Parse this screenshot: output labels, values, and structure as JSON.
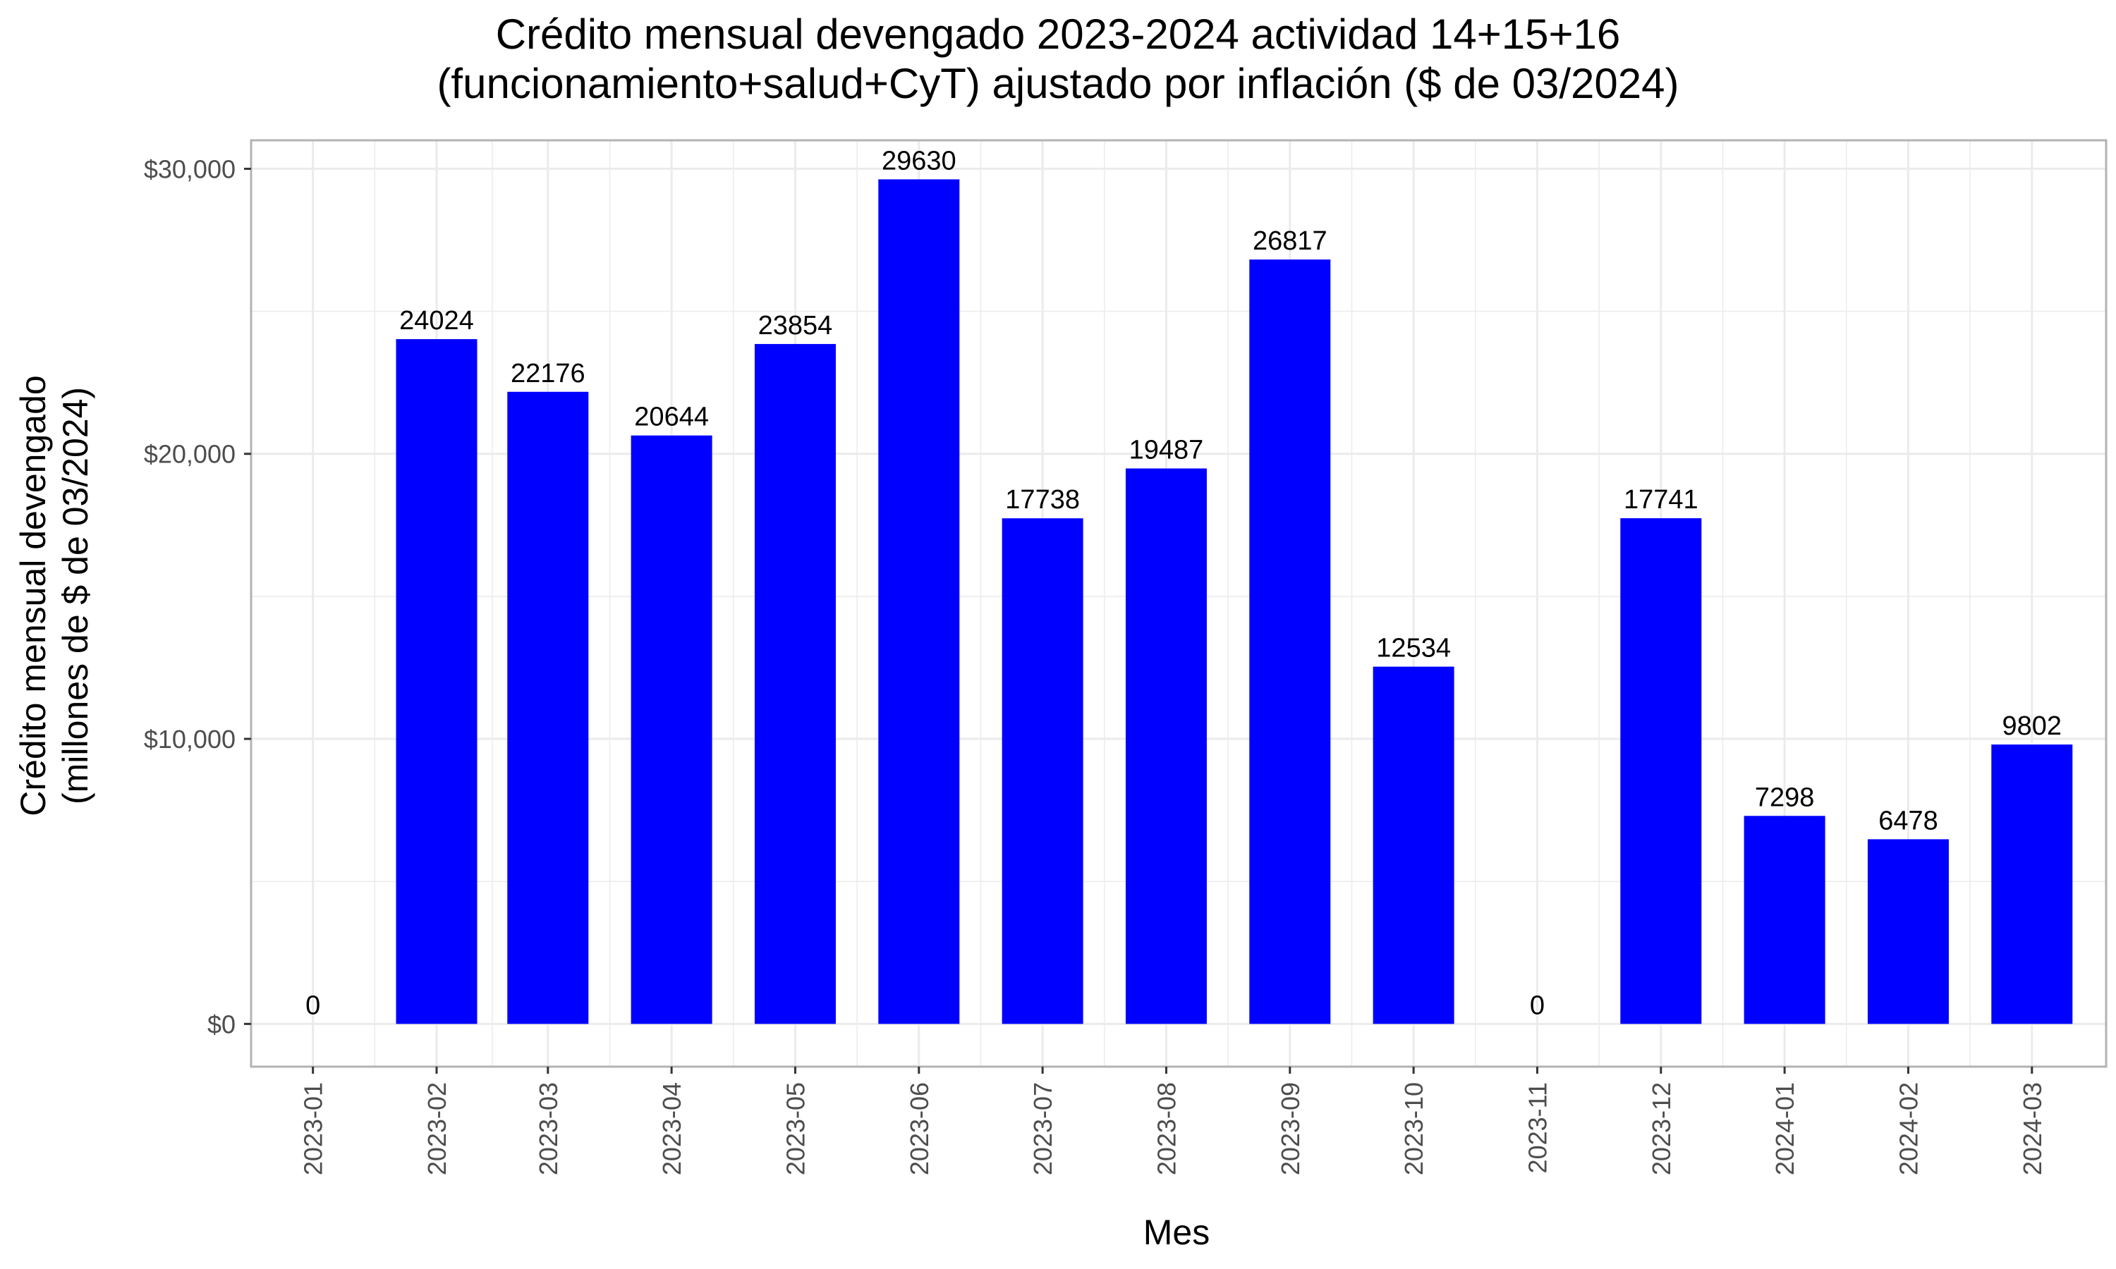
{
  "chart_data": {
    "type": "bar",
    "title_lines": [
      "Crédito mensual devengado 2023-2024 actividad 14+15+16",
      "(funcionamiento+salud+CyT) ajustado por inflación ($ de 03/2024)"
    ],
    "xlabel": "Mes",
    "ylabel_lines": [
      "Crédito mensual devengado",
      "(millones de $ de 03/2024)"
    ],
    "categories": [
      "2023-01",
      "2023-02",
      "2023-03",
      "2023-04",
      "2023-05",
      "2023-06",
      "2023-07",
      "2023-08",
      "2023-09",
      "2023-10",
      "2023-11",
      "2023-12",
      "2024-01",
      "2024-02",
      "2024-03"
    ],
    "x_positions": [
      1,
      2,
      2.9,
      3.9,
      4.9,
      5.9,
      6.9,
      7.9,
      8.9,
      9.9,
      10.9,
      11.9,
      12.9,
      13.9,
      14.9
    ],
    "values": [
      0,
      24024,
      22176,
      20644,
      23854,
      29630,
      17738,
      19487,
      26817,
      12534,
      0,
      17741,
      7298,
      6478,
      9802
    ],
    "data_labels": [
      "0",
      "24024",
      "22176",
      "20644",
      "23854",
      "29630",
      "17738",
      "19487",
      "26817",
      "12534",
      "0",
      "17741",
      "7298",
      "6478",
      "9802"
    ],
    "ylim": [
      -1500,
      31000
    ],
    "yticks": [
      0,
      10000,
      20000,
      30000
    ],
    "ytick_labels": [
      "$0",
      "$10,000",
      "$20,000",
      "$30,000"
    ],
    "grid": true,
    "bar_color": "#0000FF",
    "grid_color": "#EBEBEB",
    "axis_text_color": "#4D4D4D",
    "panel_border_color": "#B3B3B3"
  }
}
